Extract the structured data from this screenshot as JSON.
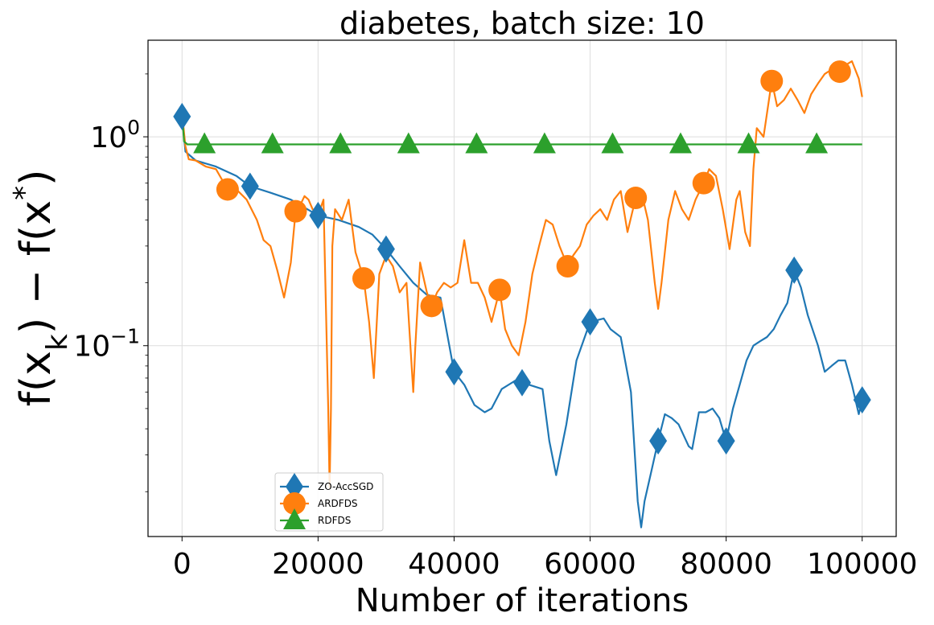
{
  "chart_data": {
    "type": "line",
    "title": "diabetes, batch size: 10",
    "xlabel": "Number of iterations",
    "ylabel": "f(x_k) − f(x*)",
    "ylabel_parts": {
      "pre": "f(x",
      "sub": "k",
      "mid": ") − f(x",
      "sup": "*",
      "post": ")"
    },
    "x_scale": "linear",
    "y_scale": "log",
    "xlim": [
      -5000,
      105000
    ],
    "ylim": [
      0.0122,
      2.9
    ],
    "x_ticks": [
      {
        "value": 0,
        "label": "0"
      },
      {
        "value": 20000,
        "label": "20000"
      },
      {
        "value": 40000,
        "label": "40000"
      },
      {
        "value": 60000,
        "label": "60000"
      },
      {
        "value": 80000,
        "label": "80000"
      },
      {
        "value": 100000,
        "label": "100000"
      }
    ],
    "y_ticks": [
      {
        "value": 0.1,
        "base": "10",
        "exp": "−1"
      },
      {
        "value": 1,
        "base": "10",
        "exp": "0"
      }
    ],
    "grid": true,
    "legend_position": "lower-center-left",
    "series": [
      {
        "name": "ZO-AccSGD",
        "color": "#1f77b4",
        "marker": "diamond",
        "markers_x": [
          0,
          10000,
          20000,
          30000,
          40000,
          50000,
          60000,
          70000,
          80000,
          90000,
          100000
        ],
        "x": [
          0,
          500,
          2000,
          5000,
          8000,
          10000,
          13000,
          16000,
          20000,
          23000,
          26000,
          28000,
          30000,
          32000,
          34000,
          36000,
          38000,
          40000,
          41500,
          43000,
          44500,
          45500,
          47000,
          49000,
          51000,
          53000,
          54000,
          55000,
          56500,
          58000,
          60000,
          62000,
          63000,
          64500,
          66000,
          67000,
          67500,
          68000,
          69000,
          70000,
          71000,
          72000,
          73000,
          74500,
          75000,
          76000,
          77000,
          78000,
          79000,
          80000,
          81000,
          82000,
          83000,
          84000,
          85000,
          86000,
          87000,
          88000,
          89000,
          90000,
          91000,
          92000,
          93500,
          94500,
          95500,
          96500,
          97500,
          98500,
          99500,
          100000
        ],
        "y": [
          1.25,
          0.85,
          0.77,
          0.72,
          0.65,
          0.58,
          0.54,
          0.5,
          0.42,
          0.4,
          0.37,
          0.34,
          0.29,
          0.24,
          0.2,
          0.175,
          0.17,
          0.075,
          0.065,
          0.052,
          0.048,
          0.05,
          0.062,
          0.068,
          0.065,
          0.062,
          0.035,
          0.024,
          0.042,
          0.085,
          0.13,
          0.135,
          0.12,
          0.11,
          0.06,
          0.018,
          0.0135,
          0.018,
          0.025,
          0.035,
          0.047,
          0.045,
          0.042,
          0.033,
          0.032,
          0.048,
          0.048,
          0.05,
          0.045,
          0.035,
          0.05,
          0.065,
          0.085,
          0.1,
          0.105,
          0.11,
          0.12,
          0.14,
          0.16,
          0.23,
          0.19,
          0.14,
          0.1,
          0.075,
          0.08,
          0.085,
          0.085,
          0.065,
          0.047,
          0.055
        ]
      },
      {
        "name": "ARDFDS",
        "color": "#ff7f0e",
        "marker": "circle",
        "markers_x": [
          6700,
          16700,
          26700,
          36700,
          46700,
          56700,
          66700,
          76700,
          86700,
          96700
        ],
        "x": [
          0,
          500,
          1000,
          2000,
          3500,
          5000,
          6700,
          8000,
          9500,
          11000,
          12000,
          13000,
          14000,
          15000,
          16000,
          16700,
          17500,
          18000,
          18600,
          19200,
          20000,
          20800,
          21500,
          21700,
          21900,
          22100,
          22500,
          23500,
          24500,
          25500,
          26700,
          27500,
          28200,
          29000,
          30000,
          31000,
          32000,
          33000,
          34000,
          34300,
          35000,
          36000,
          36700,
          37500,
          38500,
          39500,
          40500,
          41500,
          42500,
          43500,
          44500,
          45500,
          46700,
          47500,
          48500,
          49500,
          50500,
          51500,
          52500,
          53500,
          54500,
          55500,
          56700,
          57500,
          58500,
          59500,
          60500,
          61500,
          62500,
          63500,
          64500,
          65500,
          66700,
          67500,
          68500,
          69500,
          70000,
          70500,
          71500,
          72500,
          73500,
          74500,
          75500,
          76700,
          77500,
          78500,
          79500,
          80500,
          81500,
          82000,
          82800,
          83500,
          84000,
          84500,
          85500,
          86700,
          87500,
          88500,
          89500,
          90500,
          91500,
          92500,
          93500,
          94500,
          95500,
          96700,
          97500,
          98500,
          99500,
          100000
        ],
        "y": [
          1.3,
          0.9,
          0.78,
          0.77,
          0.72,
          0.7,
          0.56,
          0.56,
          0.5,
          0.4,
          0.32,
          0.3,
          0.23,
          0.17,
          0.25,
          0.44,
          0.48,
          0.52,
          0.5,
          0.45,
          0.42,
          0.5,
          0.05,
          0.021,
          0.05,
          0.3,
          0.45,
          0.4,
          0.5,
          0.28,
          0.21,
          0.13,
          0.07,
          0.22,
          0.27,
          0.24,
          0.18,
          0.2,
          0.06,
          0.1,
          0.25,
          0.18,
          0.155,
          0.18,
          0.2,
          0.19,
          0.2,
          0.32,
          0.2,
          0.2,
          0.17,
          0.13,
          0.185,
          0.12,
          0.1,
          0.09,
          0.13,
          0.22,
          0.3,
          0.4,
          0.38,
          0.3,
          0.24,
          0.27,
          0.3,
          0.38,
          0.42,
          0.45,
          0.4,
          0.5,
          0.55,
          0.35,
          0.51,
          0.55,
          0.4,
          0.2,
          0.15,
          0.2,
          0.4,
          0.55,
          0.45,
          0.4,
          0.5,
          0.6,
          0.7,
          0.65,
          0.45,
          0.29,
          0.5,
          0.55,
          0.35,
          0.3,
          0.7,
          1.1,
          1.0,
          1.85,
          1.4,
          1.5,
          1.7,
          1.5,
          1.3,
          1.6,
          1.8,
          2.0,
          2.1,
          2.05,
          2.2,
          2.3,
          1.9,
          1.55
        ]
      },
      {
        "name": "RDFDS",
        "color": "#2ca02c",
        "marker": "triangle",
        "markers_x": [
          3300,
          13300,
          23300,
          33300,
          43300,
          53300,
          63300,
          73300,
          83300,
          93300
        ],
        "x": [
          0,
          300,
          800,
          2000,
          100000
        ],
        "y": [
          1.3,
          0.95,
          0.92,
          0.92,
          0.92
        ]
      }
    ]
  }
}
